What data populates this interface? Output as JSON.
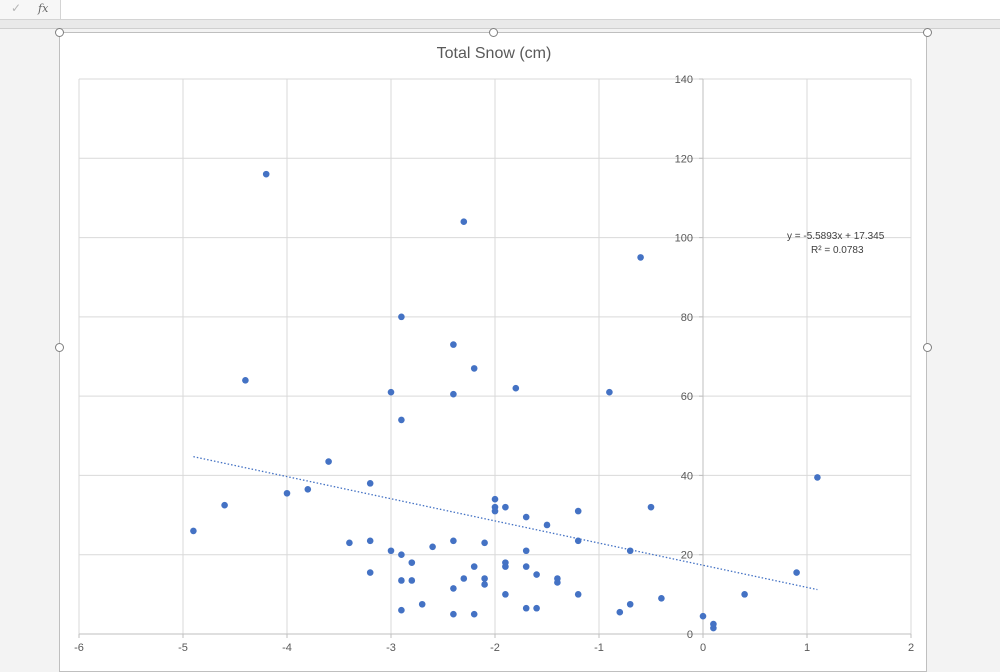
{
  "formula_bar": {
    "check_glyph": "✓",
    "fx_glyph": "fx",
    "value": ""
  },
  "chart_data": {
    "type": "scatter",
    "title": "Total Snow (cm)",
    "xlabel": "",
    "ylabel": "",
    "xlim": [
      -6,
      2
    ],
    "ylim": [
      0,
      140
    ],
    "x_ticks": [
      -6,
      -5,
      -4,
      -3,
      -2,
      -1,
      0,
      1,
      2
    ],
    "y_ticks": [
      0,
      20,
      40,
      60,
      80,
      100,
      120,
      140
    ],
    "grid": true,
    "legend": "none",
    "marker_color": "#4472c4",
    "points": [
      [
        -4.9,
        26
      ],
      [
        -4.6,
        32.5
      ],
      [
        -4.4,
        64
      ],
      [
        -4.2,
        116
      ],
      [
        -4.0,
        35.5
      ],
      [
        -3.8,
        36.5
      ],
      [
        -3.6,
        43.5
      ],
      [
        -3.4,
        23
      ],
      [
        -3.2,
        38
      ],
      [
        -3.2,
        23.5
      ],
      [
        -3.2,
        15.5
      ],
      [
        -3.0,
        61
      ],
      [
        -3.0,
        21
      ],
      [
        -2.9,
        80
      ],
      [
        -2.9,
        54
      ],
      [
        -2.9,
        20
      ],
      [
        -2.9,
        13.5
      ],
      [
        -2.9,
        6
      ],
      [
        -2.8,
        18
      ],
      [
        -2.8,
        13.5
      ],
      [
        -2.7,
        7.5
      ],
      [
        -2.6,
        22
      ],
      [
        -2.4,
        73
      ],
      [
        -2.4,
        60.5
      ],
      [
        -2.4,
        23.5
      ],
      [
        -2.4,
        11.5
      ],
      [
        -2.4,
        5
      ],
      [
        -2.3,
        104
      ],
      [
        -2.3,
        14
      ],
      [
        -2.2,
        67
      ],
      [
        -2.2,
        17
      ],
      [
        -2.2,
        5
      ],
      [
        -2.1,
        23
      ],
      [
        -2.1,
        14
      ],
      [
        -2.1,
        12.5
      ],
      [
        -2.0,
        34
      ],
      [
        -2.0,
        32
      ],
      [
        -2.0,
        31
      ],
      [
        -1.9,
        32
      ],
      [
        -1.9,
        18
      ],
      [
        -1.9,
        17
      ],
      [
        -1.9,
        10
      ],
      [
        -1.8,
        62
      ],
      [
        -1.7,
        29.5
      ],
      [
        -1.7,
        21
      ],
      [
        -1.7,
        17
      ],
      [
        -1.7,
        6.5
      ],
      [
        -1.6,
        15
      ],
      [
        -1.6,
        6.5
      ],
      [
        -1.5,
        27.5
      ],
      [
        -1.4,
        14
      ],
      [
        -1.4,
        13
      ],
      [
        -1.2,
        31
      ],
      [
        -1.2,
        23.5
      ],
      [
        -1.2,
        10
      ],
      [
        -0.9,
        61
      ],
      [
        -0.8,
        5.5
      ],
      [
        -0.7,
        21
      ],
      [
        -0.7,
        7.5
      ],
      [
        -0.6,
        95
      ],
      [
        -0.5,
        32
      ],
      [
        -0.4,
        9
      ],
      [
        0.0,
        4.5
      ],
      [
        0.1,
        2.5
      ],
      [
        0.1,
        1.5
      ],
      [
        0.4,
        10
      ],
      [
        0.9,
        15.5
      ],
      [
        1.1,
        39.5
      ]
    ],
    "trendline": {
      "type": "linear",
      "slope": -5.5893,
      "intercept": 17.345,
      "x_range": [
        -4.9,
        1.1
      ],
      "style": "dotted",
      "color": "#4472c4",
      "equation_label": "y = -5.5893x + 17.345",
      "r2_label": "R² = 0.0783"
    }
  }
}
